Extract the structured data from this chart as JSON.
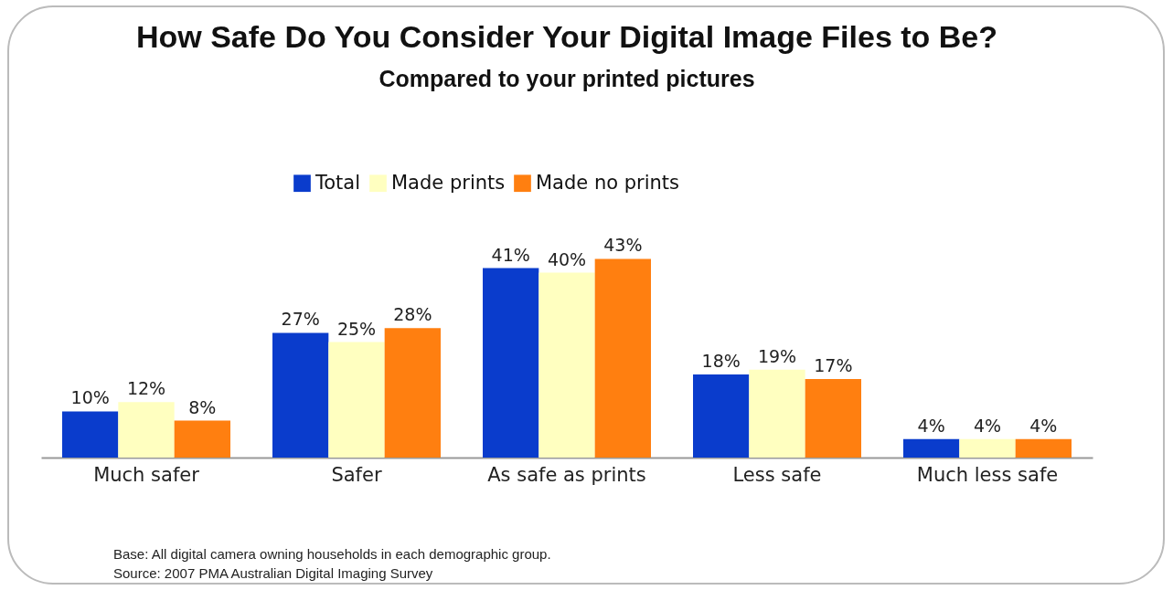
{
  "chart_data": {
    "type": "bar",
    "title": "How Safe Do You Consider Your Digital Image Files to Be?",
    "subtitle": "Compared to your printed pictures",
    "categories": [
      "Much safer",
      "Safer",
      "As safe as prints",
      "Less safe",
      "Much less safe"
    ],
    "series": [
      {
        "name": "Total",
        "color": "#0a3ccc",
        "values": [
          10,
          27,
          41,
          18,
          4
        ],
        "value_labels": [
          "10%",
          "27%",
          "41%",
          "18%",
          "4%"
        ]
      },
      {
        "name": "Made prints",
        "color": "#ffffc0",
        "values": [
          12,
          25,
          40,
          19,
          4
        ],
        "value_labels": [
          "12%",
          "25%",
          "40%",
          "19%",
          "4%"
        ]
      },
      {
        "name": "Made no prints",
        "color": "#ff7f10",
        "values": [
          8,
          28,
          43,
          17,
          4
        ],
        "value_labels": [
          "8%",
          "28%",
          "43%",
          "17%",
          "4%"
        ]
      }
    ],
    "legend": "top",
    "grid": false,
    "annotations": [
      "Base: All digital camera owning households in each demographic group.",
      "Source: 2007 PMA Australian Digital Imaging Survey"
    ]
  }
}
